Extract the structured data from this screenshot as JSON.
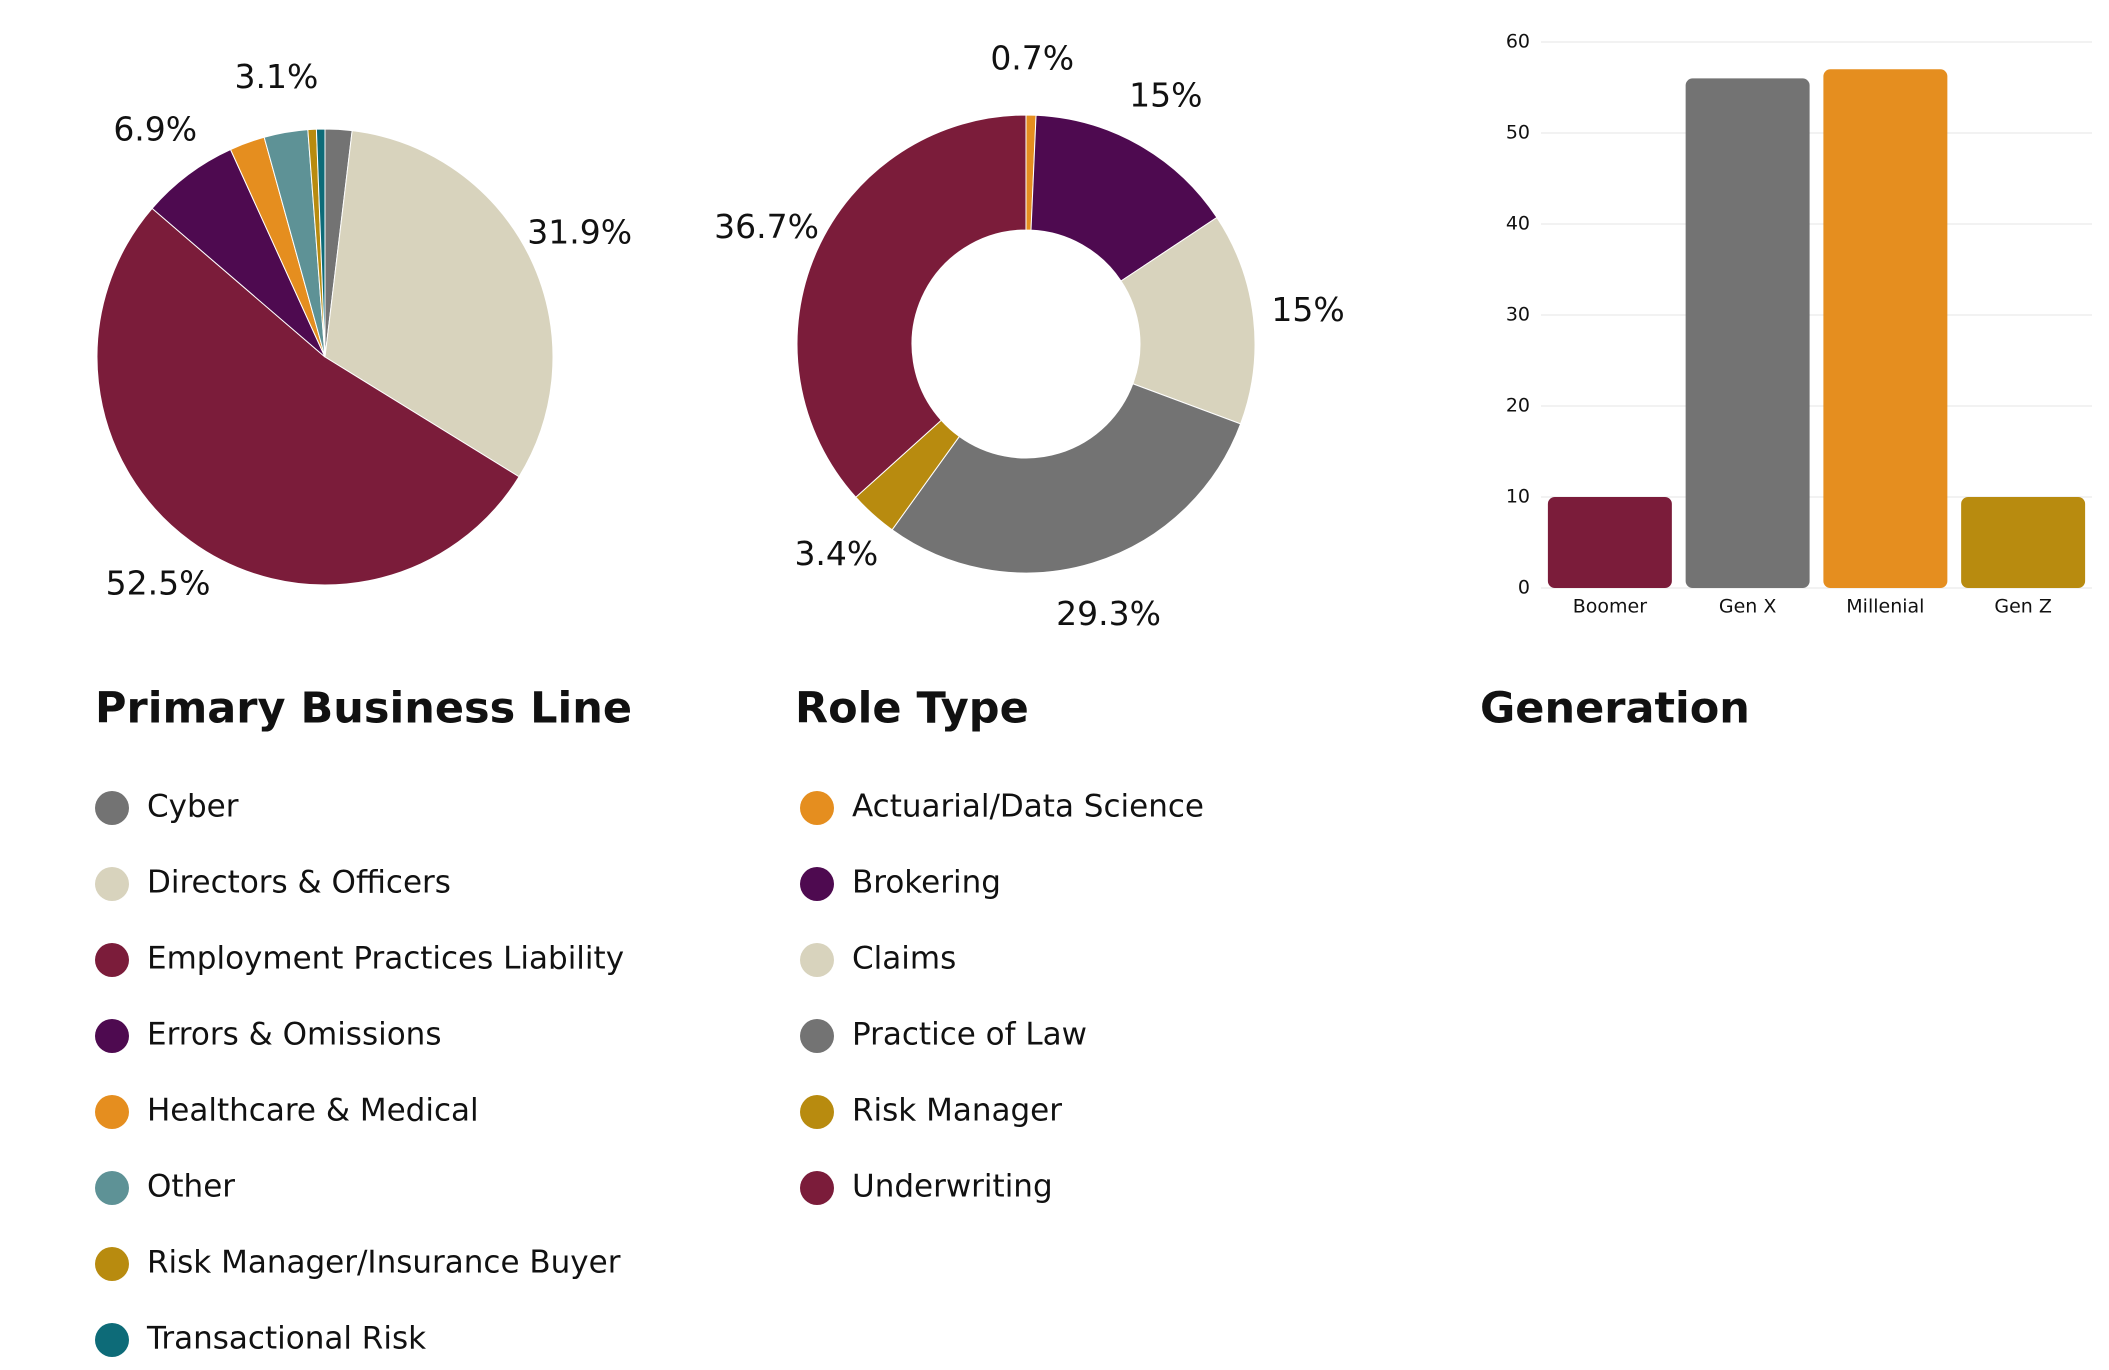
{
  "chart_data": [
    {
      "type": "pie",
      "title": "Primary Business Line",
      "categories": [
        "Cyber",
        "Directors & Officers",
        "Employment Practices Liability",
        "Errors & Omissions",
        "Healthcare & Medical",
        "Other",
        "Risk Manager/Insurance Buyer",
        "Transactional Risk"
      ],
      "values": [
        1.9,
        31.9,
        52.5,
        6.9,
        2.5,
        3.1,
        0.6,
        0.6
      ],
      "value_labels": [
        null,
        "31.9%",
        "52.5%",
        "6.9%",
        null,
        "3.1%",
        null,
        null
      ],
      "colors": [
        "#737373",
        "#d8d3bd",
        "#7b1c3a",
        "#4e0a50",
        "#e58e1f",
        "#5e9296",
        "#b88b0f",
        "#0d6b78"
      ]
    },
    {
      "type": "donut",
      "title": "Role Type",
      "categories": [
        "Actuarial/Data Science",
        "Brokering",
        "Claims",
        "Practice of Law",
        "Risk Manager",
        "Underwriting"
      ],
      "values": [
        0.7,
        15,
        15,
        29.3,
        3.4,
        36.7
      ],
      "value_labels": [
        "0.7%",
        "15%",
        "15%",
        "29.3%",
        "3.4%",
        "36.7%"
      ],
      "colors": [
        "#e58e1f",
        "#4e0a50",
        "#d8d3bd",
        "#737373",
        "#b88b0f",
        "#7b1c3a"
      ]
    },
    {
      "type": "bar",
      "title": "Generation",
      "categories": [
        "Boomer",
        "Gen X",
        "Millenial",
        "Gen Z"
      ],
      "values": [
        10,
        56,
        57,
        10
      ],
      "colors": [
        "#7b1c3a",
        "#737373",
        "#e58e1f",
        "#b88b0f"
      ],
      "ylim": [
        0,
        60
      ],
      "yticks": [
        0,
        10,
        20,
        30,
        40,
        50,
        60
      ],
      "grid": true
    }
  ]
}
